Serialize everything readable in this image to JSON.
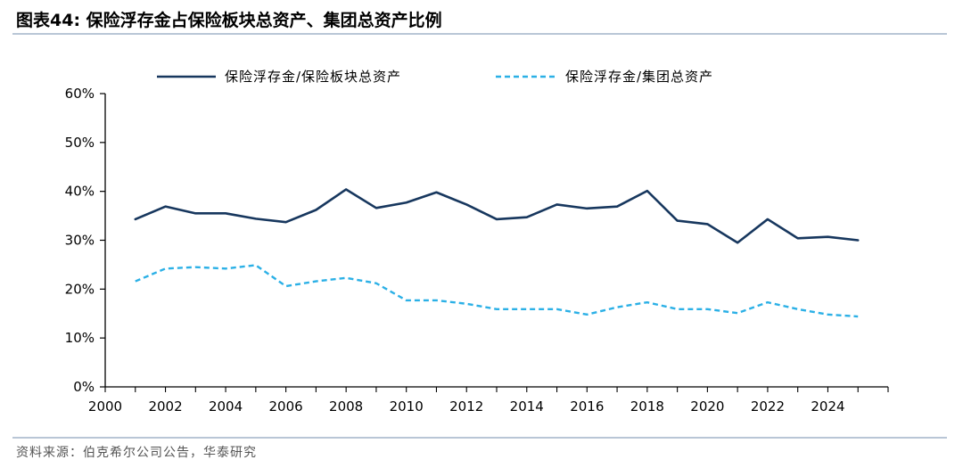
{
  "header": {
    "title": "图表44:   保险浮存金占保险板块总资产、集团总资产比例"
  },
  "footer": {
    "source": "资料来源：伯克希尔公司公告，华泰研究"
  },
  "chart_data": {
    "type": "line",
    "title": "",
    "xlabel": "",
    "ylabel": "",
    "x": [
      2001,
      2002,
      2003,
      2004,
      2005,
      2006,
      2007,
      2008,
      2009,
      2010,
      2011,
      2012,
      2013,
      2014,
      2015,
      2016,
      2017,
      2018,
      2019,
      2020,
      2021,
      2022,
      2023,
      2024,
      2025
    ],
    "xticks": [
      2000,
      2002,
      2004,
      2006,
      2008,
      2010,
      2012,
      2014,
      2016,
      2018,
      2020,
      2022,
      2024
    ],
    "xlim": [
      2000,
      2026
    ],
    "ylim": [
      0,
      60
    ],
    "yticks": [
      0,
      10,
      20,
      30,
      40,
      50,
      60
    ],
    "ytick_labels": [
      "0%",
      "10%",
      "20%",
      "30%",
      "40%",
      "50%",
      "60%"
    ],
    "legend_position": "top",
    "grid": false,
    "series": [
      {
        "name": "保险浮存金/保险板块总资产",
        "color": "#17375e",
        "style": "solid",
        "values": [
          34.3,
          36.9,
          35.5,
          35.5,
          34.4,
          33.7,
          36.2,
          40.4,
          36.6,
          37.7,
          39.8,
          37.3,
          34.3,
          34.7,
          37.3,
          36.5,
          36.9,
          40.1,
          34.0,
          33.3,
          29.5,
          34.3,
          30.4,
          30.7,
          30.0
        ]
      },
      {
        "name": "保险浮存金/集团总资产",
        "color": "#2bb0e6",
        "style": "dashed",
        "values": [
          21.6,
          24.2,
          24.5,
          24.2,
          24.9,
          20.6,
          21.6,
          22.3,
          21.2,
          17.7,
          17.7,
          17.0,
          15.9,
          15.9,
          15.9,
          14.8,
          16.3,
          17.3,
          15.9,
          15.9,
          15.1,
          17.3,
          15.9,
          14.8,
          14.4
        ]
      }
    ]
  }
}
